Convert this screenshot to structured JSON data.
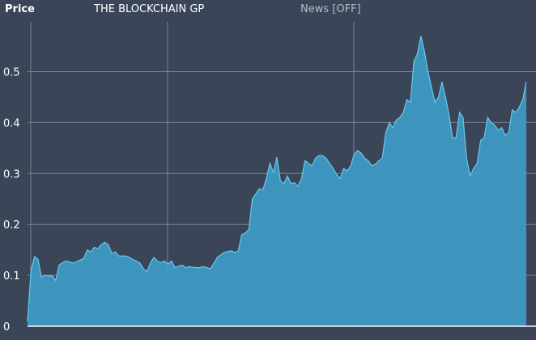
{
  "header": {
    "price_label": "Price",
    "instrument_name": "THE BLOCKCHAIN GP",
    "news_toggle": "News [OFF]"
  },
  "colors": {
    "background": "#3a4558",
    "grid": "#7a8494",
    "area_fill": "#3e9cc7",
    "area_stroke": "#6cc7ee",
    "text": "#ffffff",
    "muted_text": "#b4bcc8"
  },
  "chart_data": {
    "type": "area",
    "title": "",
    "xlabel": "",
    "ylabel": "Price",
    "ylim": [
      0,
      0.6
    ],
    "yticks": [
      "0",
      "0.1",
      "0.2",
      "0.3",
      "0.4",
      "0.5"
    ],
    "grid": true,
    "legend": "none",
    "series": [
      {
        "values": [
          0.01,
          0.11,
          0.137,
          0.131,
          0.096,
          0.1,
          0.099,
          0.099,
          0.09,
          0.12,
          0.125,
          0.128,
          0.126,
          0.124,
          0.127,
          0.13,
          0.133,
          0.15,
          0.146,
          0.155,
          0.152,
          0.16,
          0.165,
          0.16,
          0.143,
          0.146,
          0.138,
          0.138,
          0.138,
          0.135,
          0.131,
          0.128,
          0.124,
          0.113,
          0.107,
          0.125,
          0.135,
          0.128,
          0.125,
          0.128,
          0.122,
          0.128,
          0.115,
          0.118,
          0.12,
          0.115,
          0.117,
          0.116,
          0.115,
          0.115,
          0.117,
          0.115,
          0.113,
          0.123,
          0.135,
          0.14,
          0.145,
          0.147,
          0.148,
          0.145,
          0.148,
          0.18,
          0.183,
          0.19,
          0.25,
          0.26,
          0.27,
          0.268,
          0.29,
          0.32,
          0.302,
          0.332,
          0.285,
          0.28,
          0.295,
          0.28,
          0.282,
          0.275,
          0.29,
          0.325,
          0.32,
          0.315,
          0.33,
          0.335,
          0.335,
          0.33,
          0.32,
          0.31,
          0.298,
          0.29,
          0.31,
          0.305,
          0.315,
          0.338,
          0.345,
          0.34,
          0.33,
          0.325,
          0.315,
          0.318,
          0.325,
          0.33,
          0.38,
          0.4,
          0.39,
          0.405,
          0.41,
          0.42,
          0.445,
          0.44,
          0.52,
          0.535,
          0.57,
          0.54,
          0.5,
          0.47,
          0.44,
          0.45,
          0.48,
          0.45,
          0.415,
          0.37,
          0.37,
          0.42,
          0.41,
          0.33,
          0.295,
          0.31,
          0.32,
          0.365,
          0.37,
          0.41,
          0.4,
          0.395,
          0.385,
          0.39,
          0.375,
          0.38,
          0.425,
          0.42,
          0.43,
          0.445,
          0.48
        ]
      }
    ]
  }
}
